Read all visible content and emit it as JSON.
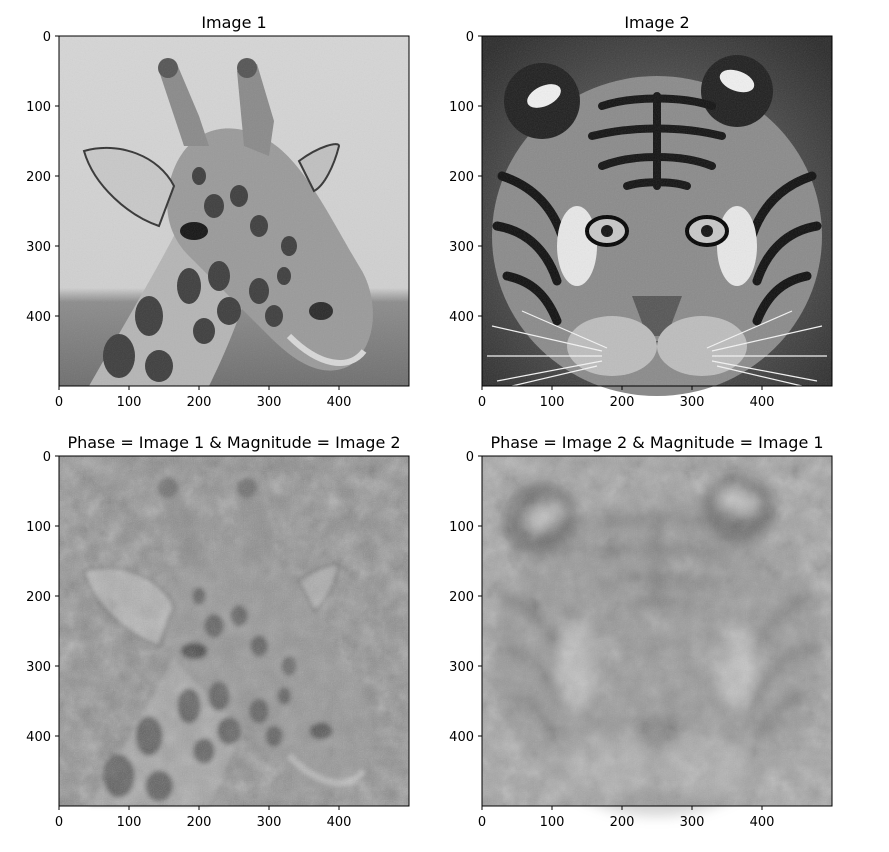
{
  "chart_data": [
    {
      "type": "image",
      "title": "Image 1",
      "content": "giraffe-grayscale",
      "x_ticks": [
        0,
        100,
        200,
        300,
        400
      ],
      "y_ticks": [
        0,
        100,
        200,
        300,
        400
      ],
      "xlim": [
        0,
        500
      ],
      "ylim": [
        500,
        0
      ]
    },
    {
      "type": "image",
      "title": "Image 2",
      "content": "tiger-grayscale",
      "x_ticks": [
        0,
        100,
        200,
        300,
        400
      ],
      "y_ticks": [
        0,
        100,
        200,
        300,
        400
      ],
      "xlim": [
        0,
        500
      ],
      "ylim": [
        500,
        0
      ]
    },
    {
      "type": "image",
      "title": "Phase = Image 1 & Magnitude = Image 2",
      "content": "giraffe-noisy-reconstruction",
      "x_ticks": [
        0,
        100,
        200,
        300,
        400
      ],
      "y_ticks": [
        0,
        100,
        200,
        300,
        400
      ],
      "xlim": [
        0,
        500
      ],
      "ylim": [
        500,
        0
      ]
    },
    {
      "type": "image",
      "title": "Phase = Image 2 & Magnitude = Image 1",
      "content": "tiger-faint-reconstruction",
      "x_ticks": [
        0,
        100,
        200,
        300,
        400
      ],
      "y_ticks": [
        0,
        100,
        200,
        300,
        400
      ],
      "xlim": [
        0,
        500
      ],
      "ylim": [
        500,
        0
      ]
    }
  ]
}
